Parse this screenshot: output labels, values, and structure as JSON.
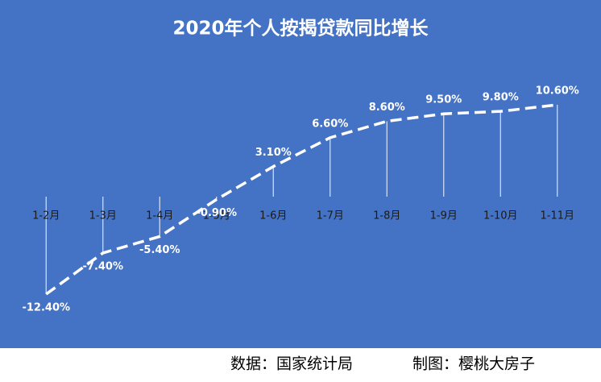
{
  "chart_data": {
    "type": "line",
    "title": "2020年个人按揭贷款同比增长",
    "categories": [
      "1-2月",
      "1-3月",
      "1-4月",
      "1-5月",
      "1-6月",
      "1-7月",
      "1-8月",
      "1-9月",
      "1-10月",
      "1-11月"
    ],
    "values": [
      -12.4,
      -7.4,
      -5.4,
      -0.9,
      3.1,
      6.6,
      8.6,
      9.5,
      9.8,
      10.6
    ],
    "value_labels": [
      "-12.40%",
      "-7.40%",
      "-5.40%",
      "-0.90%",
      "3.10%",
      "6.60%",
      "8.60%",
      "9.50%",
      "9.80%",
      "10.60%"
    ],
    "color": "#ffffff",
    "background": "#4472c4",
    "source": "数据：国家统计局",
    "credit": "制图：樱桃大房子"
  }
}
